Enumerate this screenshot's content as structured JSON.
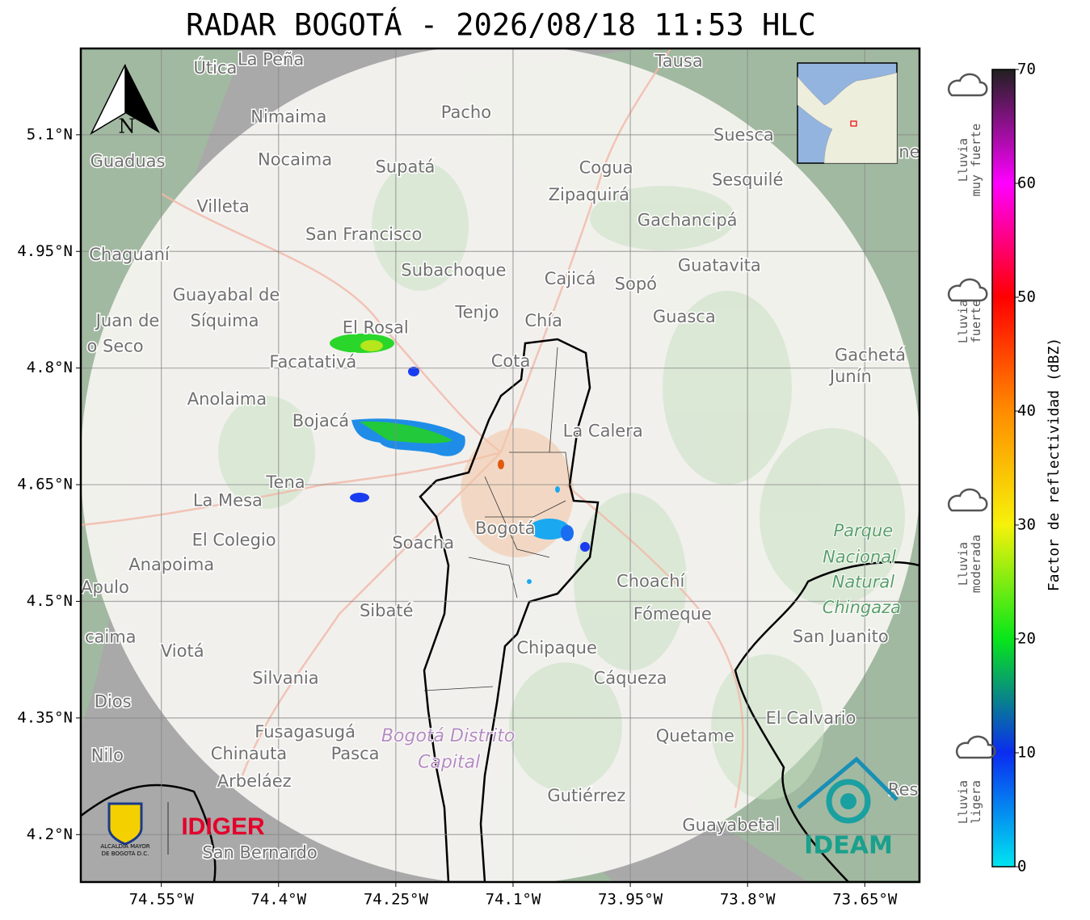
{
  "title": "RADAR BOGOTÁ - 2026/08/18 11:53 HLC",
  "map": {
    "xlim": [
      -74.653,
      -73.58
    ],
    "ylim": [
      4.139,
      5.211
    ],
    "xticks": [
      {
        "value": -74.55,
        "label": "74.55°W"
      },
      {
        "value": -74.4,
        "label": "74.4°W"
      },
      {
        "value": -74.25,
        "label": "74.25°W"
      },
      {
        "value": -74.1,
        "label": "74.1°W"
      },
      {
        "value": -73.95,
        "label": "73.95°W"
      },
      {
        "value": -73.8,
        "label": "73.8°W"
      },
      {
        "value": -73.65,
        "label": "73.65°W"
      }
    ],
    "yticks": [
      {
        "value": 5.1,
        "label": "5.1°N"
      },
      {
        "value": 4.95,
        "label": "4.95°N"
      },
      {
        "value": 4.8,
        "label": "4.8°N"
      },
      {
        "value": 4.65,
        "label": "4.65°N"
      },
      {
        "value": 4.5,
        "label": "4.5°N"
      },
      {
        "value": 4.35,
        "label": "4.35°N"
      },
      {
        "value": 4.2,
        "label": "4.2°N"
      }
    ],
    "grid": true,
    "places": [
      {
        "name": "Útica",
        "lon": -74.481,
        "lat": 5.185
      },
      {
        "name": "La Peña",
        "lon": -74.41,
        "lat": 5.196
      },
      {
        "name": "Tausa",
        "lon": -73.888,
        "lat": 5.194
      },
      {
        "name": "Pacho",
        "lon": -74.16,
        "lat": 5.128
      },
      {
        "name": "Nimaima",
        "lon": -74.387,
        "lat": 5.122
      },
      {
        "name": "Guaduas",
        "lon": -74.593,
        "lat": 5.065
      },
      {
        "name": "Nocaima",
        "lon": -74.379,
        "lat": 5.067
      },
      {
        "name": "Supatá",
        "lon": -74.238,
        "lat": 5.058
      },
      {
        "name": "Cogua",
        "lon": -73.981,
        "lat": 5.057
      },
      {
        "name": "Suesca",
        "lon": -73.805,
        "lat": 5.099
      },
      {
        "name": "Sesquilé",
        "lon": -73.8,
        "lat": 5.041
      },
      {
        "name": "Zipaquirá",
        "lon": -74.003,
        "lat": 5.022
      },
      {
        "name": "Villeta",
        "lon": -74.471,
        "lat": 5.007
      },
      {
        "name": "Gachancipá",
        "lon": -73.877,
        "lat": 4.989
      },
      {
        "name": "San Francisco",
        "lon": -74.291,
        "lat": 4.971
      },
      {
        "name": "Chaguaní",
        "lon": -74.591,
        "lat": 4.945
      },
      {
        "name": "Guatavita",
        "lon": -73.836,
        "lat": 4.931
      },
      {
        "name": "Subachoque",
        "lon": -74.176,
        "lat": 4.925
      },
      {
        "name": "Cajicá",
        "lon": -74.027,
        "lat": 4.914
      },
      {
        "name": "Sopó",
        "lon": -73.943,
        "lat": 4.907
      },
      {
        "name": "Guayabal de",
        "lon": -74.467,
        "lat": 4.893
      },
      {
        "name": "Síquima",
        "lon": -74.469,
        "lat": 4.86
      },
      {
        "name": "Tenjo",
        "lon": -74.146,
        "lat": 4.871
      },
      {
        "name": "Chía",
        "lon": -74.061,
        "lat": 4.86
      },
      {
        "name": "Guasca",
        "lon": -73.881,
        "lat": 4.865
      },
      {
        "name": "Juan de",
        "lon": -74.593,
        "lat": 4.86
      },
      {
        "name": "o Seco",
        "lon": -74.609,
        "lat": 4.827
      },
      {
        "name": "El Rosal",
        "lon": -74.276,
        "lat": 4.851
      },
      {
        "name": "Facatativá",
        "lon": -74.356,
        "lat": 4.807
      },
      {
        "name": "Cota",
        "lon": -74.103,
        "lat": 4.808
      },
      {
        "name": "Gachetá",
        "lon": -73.643,
        "lat": 4.816
      },
      {
        "name": "Junín",
        "lon": -73.668,
        "lat": 4.788
      },
      {
        "name": "Anolaima",
        "lon": -74.466,
        "lat": 4.759
      },
      {
        "name": "Bojacá",
        "lon": -74.346,
        "lat": 4.731
      },
      {
        "name": "La Calera",
        "lon": -73.985,
        "lat": 4.718
      },
      {
        "name": "Tena",
        "lon": -74.391,
        "lat": 4.652
      },
      {
        "name": "La Mesa",
        "lon": -74.465,
        "lat": 4.629
      },
      {
        "name": "El Colegio",
        "lon": -74.457,
        "lat": 4.578
      },
      {
        "name": "Soacha",
        "lon": -74.215,
        "lat": 4.574
      },
      {
        "name": "Bogotá",
        "lon": -74.11,
        "lat": 4.593
      },
      {
        "name": "Anapoima",
        "lon": -74.537,
        "lat": 4.546
      },
      {
        "name": "Apulo",
        "lon": -74.622,
        "lat": 4.517
      },
      {
        "name": "Choachí",
        "lon": -73.924,
        "lat": 4.525
      },
      {
        "name": "Sibaté",
        "lon": -74.262,
        "lat": 4.487
      },
      {
        "name": "Fómeque",
        "lon": -73.896,
        "lat": 4.483
      },
      {
        "name": "caima",
        "lon": -74.615,
        "lat": 4.453
      },
      {
        "name": "Viotá",
        "lon": -74.523,
        "lat": 4.435
      },
      {
        "name": "San Juanito",
        "lon": -73.681,
        "lat": 4.454
      },
      {
        "name": "Chipaque",
        "lon": -74.044,
        "lat": 4.439
      },
      {
        "name": "Silvania",
        "lon": -74.391,
        "lat": 4.4
      },
      {
        "name": "Cáqueza",
        "lon": -73.95,
        "lat": 4.4
      },
      {
        "name": "Dios",
        "lon": -74.612,
        "lat": 4.37
      },
      {
        "name": "El Calvario",
        "lon": -73.719,
        "lat": 4.349
      },
      {
        "name": "Fusagasugá",
        "lon": -74.366,
        "lat": 4.331
      },
      {
        "name": "Quetame",
        "lon": -73.867,
        "lat": 4.326
      },
      {
        "name": "Nilo",
        "lon": -74.619,
        "lat": 4.301
      },
      {
        "name": "Chinauta",
        "lon": -74.438,
        "lat": 4.303
      },
      {
        "name": "Pasca",
        "lon": -74.302,
        "lat": 4.303
      },
      {
        "name": "Arbeláez",
        "lon": -74.431,
        "lat": 4.268
      },
      {
        "name": "Gutiérrez",
        "lon": -74.006,
        "lat": 4.249
      },
      {
        "name": "Guayabetal",
        "lon": -73.821,
        "lat": 4.211
      },
      {
        "name": "San Bernardo",
        "lon": -74.424,
        "lat": 4.176
      },
      {
        "name": "Res",
        "lon": -73.601,
        "lat": 4.257
      },
      {
        "name": "ne",
        "lon": -73.593,
        "lat": 5.077
      }
    ],
    "areas": [
      {
        "name": "Parque",
        "lon": -73.652,
        "lat": 4.59
      },
      {
        "name": "Nacional",
        "lon": -73.657,
        "lat": 4.556
      },
      {
        "name": "Natural",
        "lon": -73.652,
        "lat": 4.524
      },
      {
        "name": "Chingaza",
        "lon": -73.654,
        "lat": 4.491
      }
    ],
    "district": [
      {
        "name": "Bogotá Distrito",
        "lon": -74.183,
        "lat": 4.326
      },
      {
        "name": "Capital",
        "lon": -74.182,
        "lat": 4.292
      }
    ],
    "north": "N"
  },
  "colorbar": {
    "label": "Factor de reflectividad (dBZ)",
    "lim": [
      0,
      70
    ],
    "ticks": [
      0,
      10,
      20,
      30,
      40,
      50,
      60,
      70
    ],
    "colormap": [
      "#00e5f0",
      "#0a2cf0",
      "#08e61a",
      "#f6f20a",
      "#ff8c00",
      "#ff0000",
      "#ff00ff",
      "#202020"
    ]
  },
  "intensity": [
    [
      "Lluvia",
      "muy fuerte"
    ],
    [
      "Lluvia",
      "fuerte"
    ],
    [
      "Lluvia",
      "moderada"
    ],
    [
      "Lluvia",
      "ligera"
    ]
  ],
  "logos": {
    "alcaldia": [
      "ALCALDÍA MAYOR",
      "DE BOGOTÁ D.C."
    ],
    "idiger": "IDIGER",
    "ideam": "IDEAM"
  }
}
